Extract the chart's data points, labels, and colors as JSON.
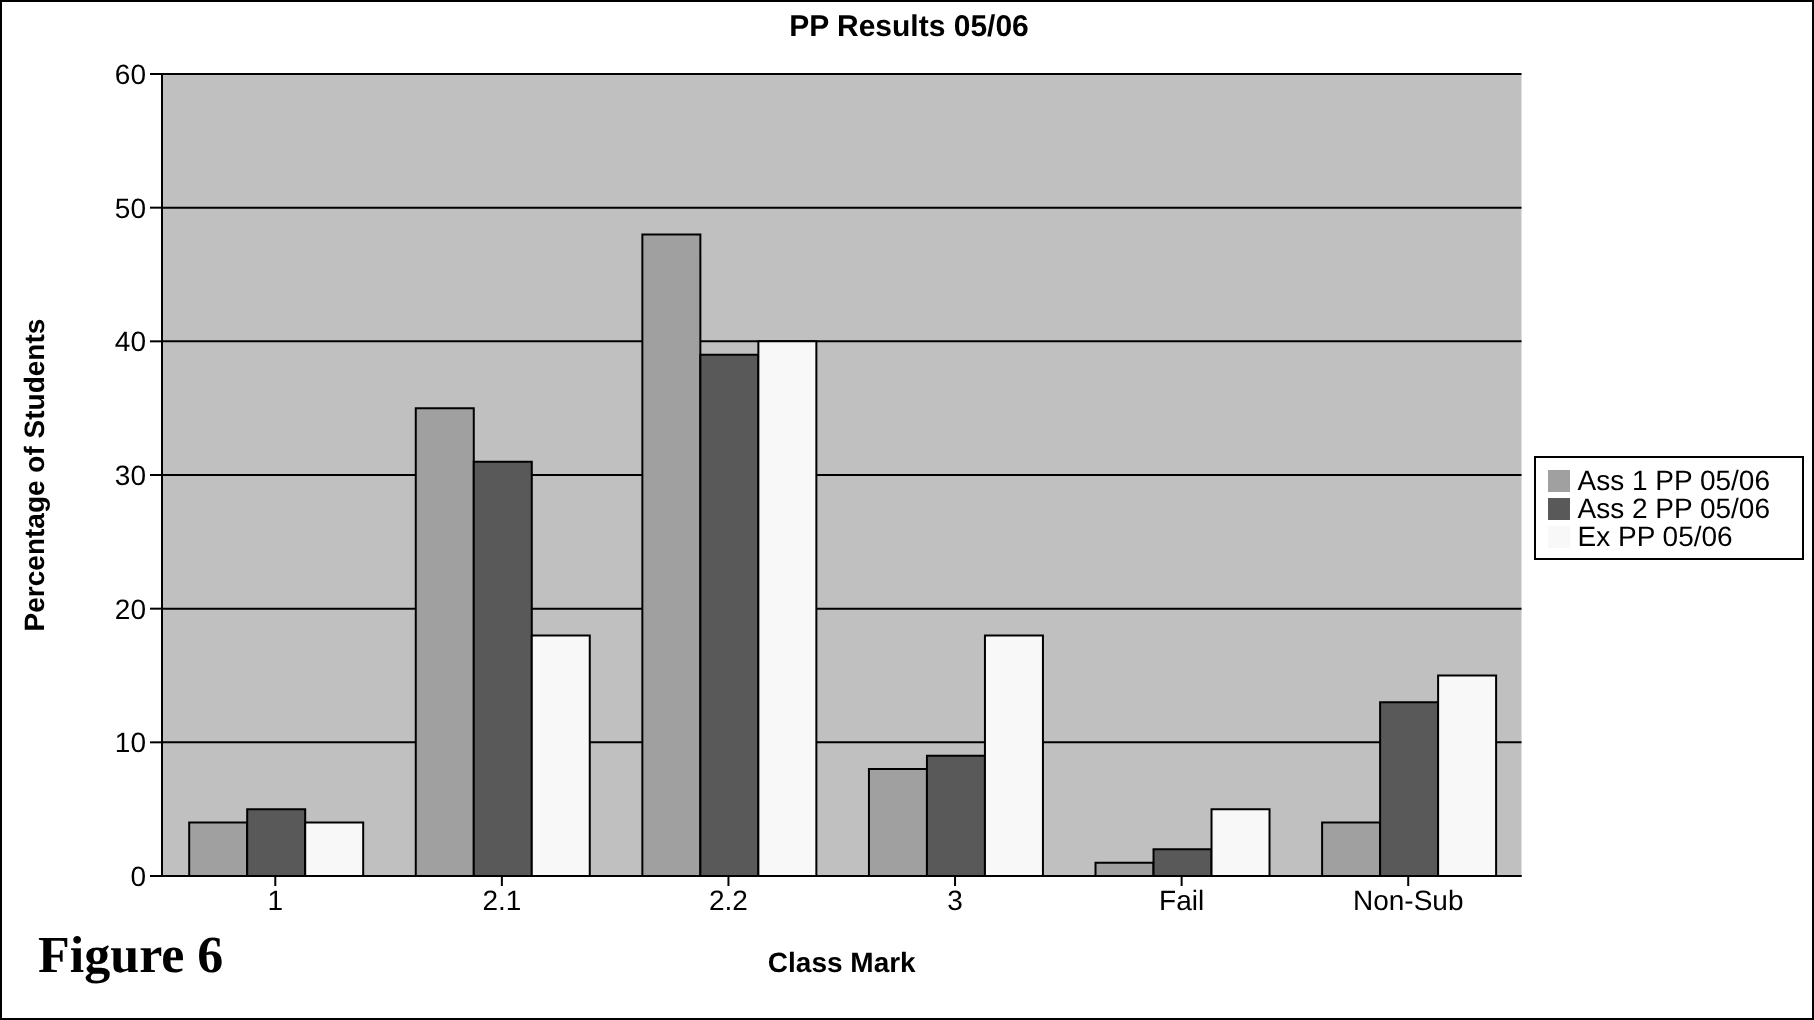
{
  "chart_data": {
    "type": "bar",
    "title": "PP Results 05/06",
    "xlabel": "Class Mark",
    "ylabel": "Percentage of Students",
    "annotations": [
      "Figure 6"
    ],
    "categories": [
      "1",
      "2.1",
      "2.2",
      "3",
      "Fail",
      "Non-Sub"
    ],
    "series": [
      {
        "name": "Ass 1 PP 05/06",
        "color": "#a0a0a0",
        "values": [
          4,
          35,
          48,
          8,
          1,
          4
        ]
      },
      {
        "name": "Ass 2 PP 05/06",
        "color": "#595959",
        "values": [
          5,
          31,
          39,
          9,
          2,
          13
        ]
      },
      {
        "name": "Ex PP 05/06",
        "color": "#f8f8f8",
        "values": [
          4,
          18,
          40,
          18,
          5,
          15
        ]
      }
    ],
    "ylim": [
      0,
      60
    ],
    "yticks": [
      0,
      10,
      20,
      30,
      40,
      50,
      60
    ],
    "grid": "y",
    "legend": "right"
  }
}
